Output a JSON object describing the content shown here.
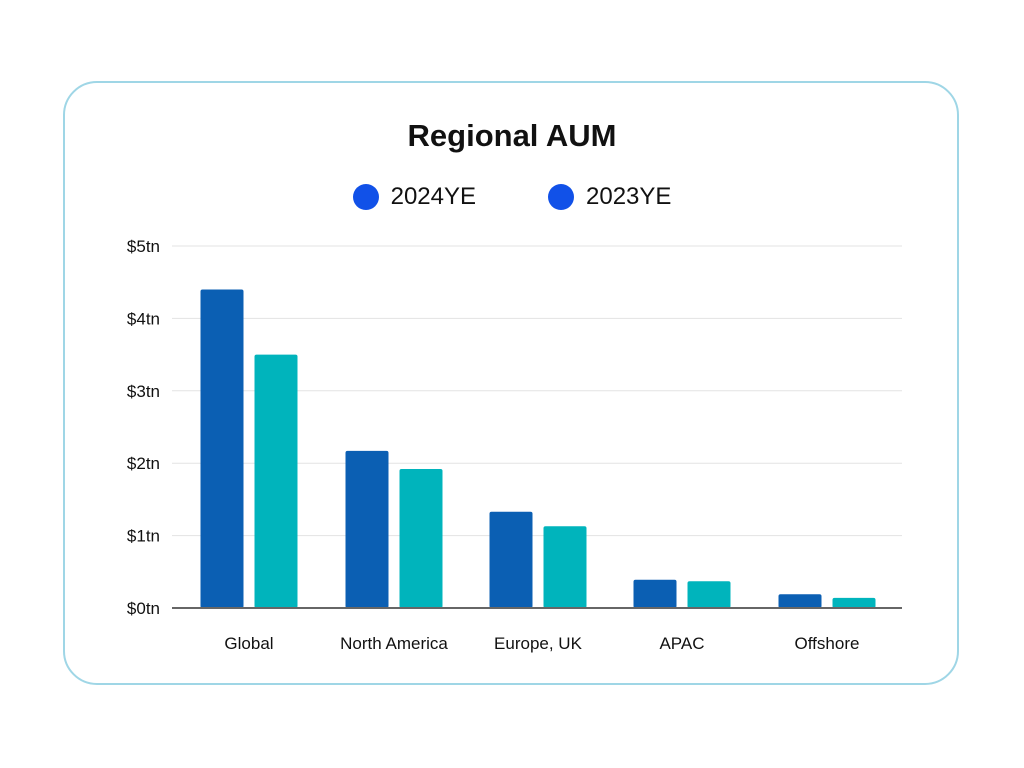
{
  "chart_data": {
    "type": "bar",
    "title": "Regional AUM",
    "xlabel": "",
    "ylabel": "",
    "categories": [
      "Global",
      "North America",
      "Europe, UK",
      "APAC",
      "Offshore"
    ],
    "series": [
      {
        "name": "2024YE",
        "values": [
          4.4,
          2.17,
          1.33,
          0.39,
          0.19
        ],
        "color": "#0b5fb3"
      },
      {
        "name": "2023YE",
        "values": [
          3.5,
          1.92,
          1.13,
          0.37,
          0.14
        ],
        "color": "#00b4bc"
      }
    ],
    "legend_swatch_color": "#1151e8",
    "ylim": [
      0,
      5
    ],
    "yticks": [
      0,
      1,
      2,
      3,
      4,
      5
    ],
    "ytick_labels": [
      "$0tn",
      "$1tn",
      "$2tn",
      "$3tn",
      "$4tn",
      "$5tn"
    ],
    "grid": true,
    "legend_position": "top-center"
  }
}
